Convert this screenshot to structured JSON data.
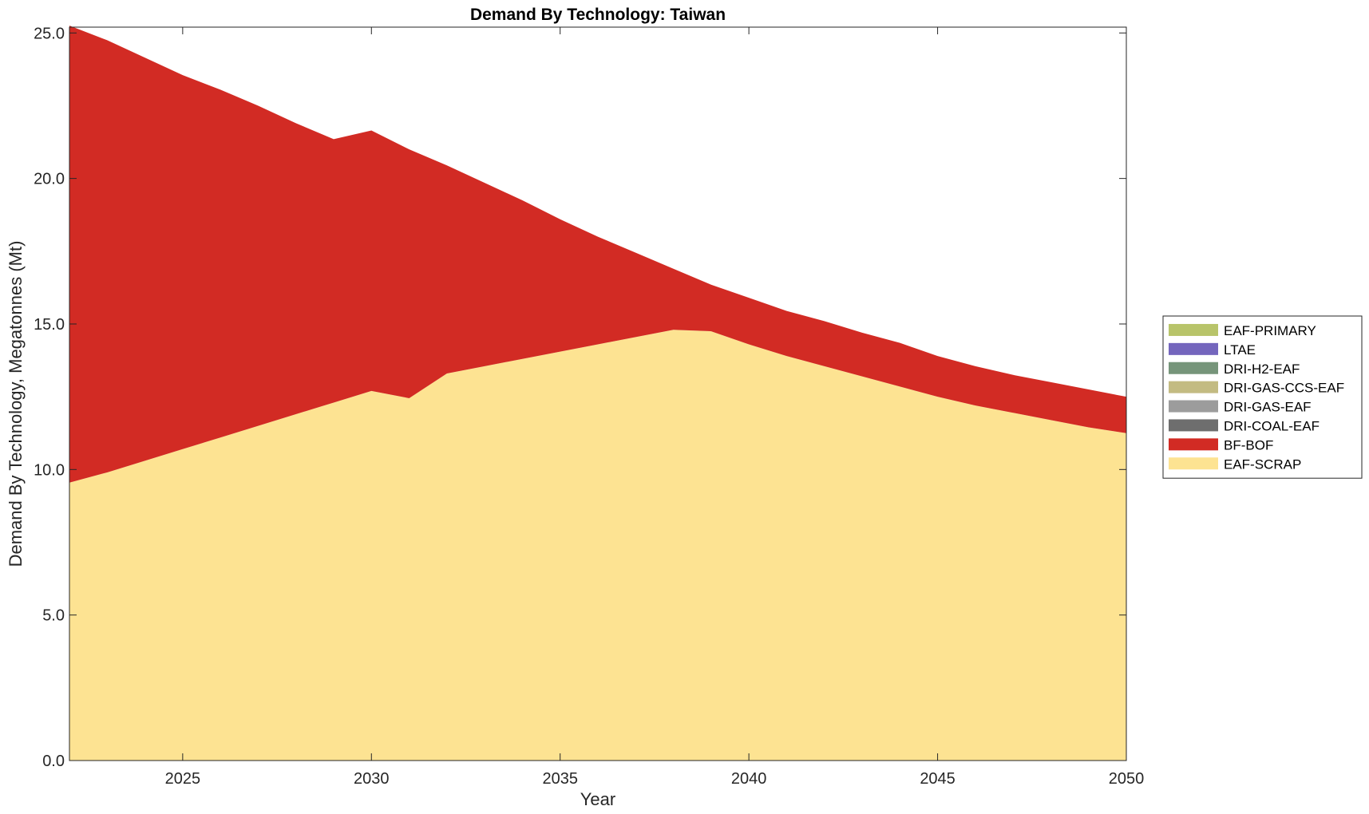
{
  "chart_data": {
    "type": "area",
    "stacked": true,
    "title": "Demand By Technology: Taiwan",
    "xlabel": "Year",
    "ylabel": "Demand By Technology, Megatonnes (Mt)",
    "xlim": [
      2022,
      2050
    ],
    "ylim": [
      0,
      25.2
    ],
    "xticks": [
      "2025",
      "2030",
      "2035",
      "2040",
      "2045",
      "2050"
    ],
    "yticks": [
      "0.0",
      "5.0",
      "10.0",
      "15.0",
      "20.0",
      "25.0"
    ],
    "grid": false,
    "legend_position": "right",
    "legend": [
      {
        "name": "EAF-PRIMARY",
        "color": "#b8c46a"
      },
      {
        "name": "LTAE",
        "color": "#7466bd"
      },
      {
        "name": "DRI-H2-EAF",
        "color": "#76957a"
      },
      {
        "name": "DRI-GAS-CCS-EAF",
        "color": "#c3bb82"
      },
      {
        "name": "DRI-GAS-EAF",
        "color": "#9c9c9c"
      },
      {
        "name": "DRI-COAL-EAF",
        "color": "#6e6e6e"
      },
      {
        "name": "BF-BOF",
        "color": "#d22b24"
      },
      {
        "name": "EAF-SCRAP",
        "color": "#fde392"
      }
    ],
    "x": [
      2022,
      2023,
      2024,
      2025,
      2026,
      2027,
      2028,
      2029,
      2030,
      2031,
      2032,
      2033,
      2034,
      2035,
      2036,
      2037,
      2038,
      2039,
      2040,
      2041,
      2042,
      2043,
      2044,
      2045,
      2046,
      2047,
      2048,
      2049,
      2050
    ],
    "series": [
      {
        "name": "EAF-SCRAP",
        "color": "#fde392",
        "values": [
          9.55,
          9.9,
          10.3,
          10.7,
          11.1,
          11.5,
          11.9,
          12.3,
          12.7,
          12.45,
          13.3,
          13.55,
          13.8,
          14.05,
          14.3,
          14.55,
          14.8,
          14.75,
          14.3,
          13.9,
          13.55,
          13.2,
          12.85,
          12.5,
          12.2,
          11.95,
          11.7,
          11.45,
          11.25
        ]
      },
      {
        "name": "BF-BOF",
        "color": "#d22b24",
        "values": [
          15.7,
          14.85,
          13.85,
          12.85,
          11.95,
          11.0,
          10.0,
          9.05,
          8.95,
          8.55,
          7.15,
          6.3,
          5.45,
          4.55,
          3.7,
          2.9,
          2.1,
          1.6,
          1.6,
          1.55,
          1.55,
          1.5,
          1.5,
          1.4,
          1.35,
          1.3,
          1.3,
          1.3,
          1.25
        ]
      },
      {
        "name": "DRI-COAL-EAF",
        "color": "#6e6e6e",
        "values": [
          0,
          0,
          0,
          0,
          0,
          0,
          0,
          0,
          0,
          0,
          0,
          0,
          0,
          0,
          0,
          0,
          0,
          0,
          0,
          0,
          0,
          0,
          0,
          0,
          0,
          0,
          0,
          0,
          0
        ]
      },
      {
        "name": "DRI-GAS-EAF",
        "color": "#9c9c9c",
        "values": [
          0,
          0,
          0,
          0,
          0,
          0,
          0,
          0,
          0,
          0,
          0,
          0,
          0,
          0,
          0,
          0,
          0,
          0,
          0,
          0,
          0,
          0,
          0,
          0,
          0,
          0,
          0,
          0,
          0
        ]
      },
      {
        "name": "DRI-GAS-CCS-EAF",
        "color": "#c3bb82",
        "values": [
          0,
          0,
          0,
          0,
          0,
          0,
          0,
          0,
          0,
          0,
          0,
          0,
          0,
          0,
          0,
          0,
          0,
          0,
          0,
          0,
          0,
          0,
          0,
          0,
          0,
          0,
          0,
          0,
          0
        ]
      },
      {
        "name": "DRI-H2-EAF",
        "color": "#76957a",
        "values": [
          0,
          0,
          0,
          0,
          0,
          0,
          0,
          0,
          0,
          0,
          0,
          0,
          0,
          0,
          0,
          0,
          0,
          0,
          0,
          0,
          0,
          0,
          0,
          0,
          0,
          0,
          0,
          0,
          0
        ]
      },
      {
        "name": "LTAE",
        "color": "#7466bd",
        "values": [
          0,
          0,
          0,
          0,
          0,
          0,
          0,
          0,
          0,
          0,
          0,
          0,
          0,
          0,
          0,
          0,
          0,
          0,
          0,
          0,
          0,
          0,
          0,
          0,
          0,
          0,
          0,
          0,
          0
        ]
      },
      {
        "name": "EAF-PRIMARY",
        "color": "#b8c46a",
        "values": [
          0,
          0,
          0,
          0,
          0,
          0,
          0,
          0,
          0,
          0,
          0,
          0,
          0,
          0,
          0,
          0,
          0,
          0,
          0,
          0,
          0,
          0,
          0,
          0,
          0,
          0,
          0,
          0,
          0
        ]
      }
    ]
  }
}
